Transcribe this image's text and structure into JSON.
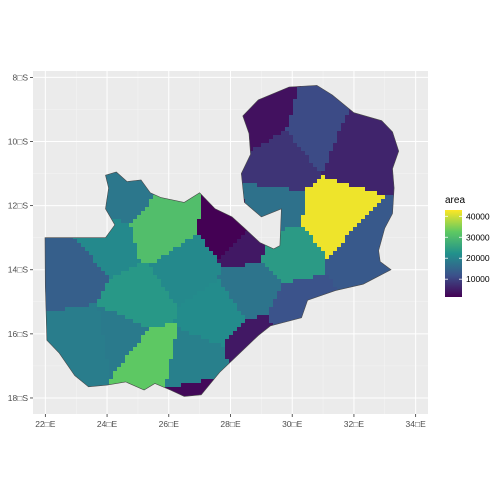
{
  "chart_data": {
    "type": "choropleth",
    "legend": {
      "title": "area",
      "position": "right",
      "ticks": [
        10000,
        20000,
        30000,
        40000
      ],
      "tick_labels": [
        "10000",
        "20000",
        "30000",
        "40000"
      ],
      "min": 1500,
      "max": 43000,
      "palette": [
        "#440154",
        "#3b528b",
        "#21918c",
        "#5ec962",
        "#fde725"
      ]
    },
    "x_axis": {
      "range": [
        21.6,
        34.4
      ],
      "ticks": [
        22,
        24,
        26,
        28,
        30,
        32,
        34
      ],
      "tick_labels": [
        "22□E",
        "24□E",
        "26□E",
        "28□E",
        "30□E",
        "32□E",
        "34□E"
      ]
    },
    "y_axis": {
      "range": [
        -18.5,
        -7.8
      ],
      "ticks": [
        -8,
        -10,
        -12,
        -14,
        -16,
        -18
      ],
      "tick_labels": [
        "8□S",
        "10□S",
        "12□S",
        "14□S",
        "16□S",
        "18□S"
      ]
    },
    "grid": true,
    "districts": [
      {
        "lon": 31.2,
        "lat": -12.3,
        "value": 42000
      },
      {
        "lon": 25.3,
        "lat": -16.7,
        "value": 32500
      },
      {
        "lon": 25.7,
        "lat": -12.7,
        "value": 30500
      },
      {
        "lon": 29.8,
        "lat": -13.3,
        "value": 24000
      },
      {
        "lon": 25.0,
        "lat": -15.0,
        "value": 23500
      },
      {
        "lon": 27.5,
        "lat": -15.3,
        "value": 21500
      },
      {
        "lon": 26.6,
        "lat": -14.0,
        "value": 21000
      },
      {
        "lon": 24.0,
        "lat": -13.1,
        "value": 21000
      },
      {
        "lon": 26.8,
        "lat": -17.0,
        "value": 19500
      },
      {
        "lon": 23.3,
        "lat": -16.3,
        "value": 19000
      },
      {
        "lon": 24.5,
        "lat": -16.1,
        "value": 18500
      },
      {
        "lon": 28.6,
        "lat": -14.6,
        "value": 17500
      },
      {
        "lon": 24.5,
        "lat": -11.7,
        "value": 18000
      },
      {
        "lon": 29.5,
        "lat": -12.2,
        "value": 17000
      },
      {
        "lon": 32.5,
        "lat": -13.5,
        "value": 13000
      },
      {
        "lon": 30.2,
        "lat": -15.4,
        "value": 12000
      },
      {
        "lon": 22.9,
        "lat": -14.0,
        "value": 14000
      },
      {
        "lon": 30.9,
        "lat": -9.8,
        "value": 11000
      },
      {
        "lon": 29.7,
        "lat": -10.7,
        "value": 8000
      },
      {
        "lon": 31.9,
        "lat": -10.2,
        "value": 6000
      },
      {
        "lon": 28.8,
        "lat": -9.2,
        "value": 3500
      },
      {
        "lon": 28.4,
        "lat": -13.1,
        "value": 4500
      },
      {
        "lon": 28.9,
        "lat": -16.4,
        "value": 4500
      },
      {
        "lon": 27.0,
        "lat": -18.0,
        "value": 2500
      },
      {
        "lon": 28.2,
        "lat": -12.9,
        "value": 1500
      }
    ]
  }
}
